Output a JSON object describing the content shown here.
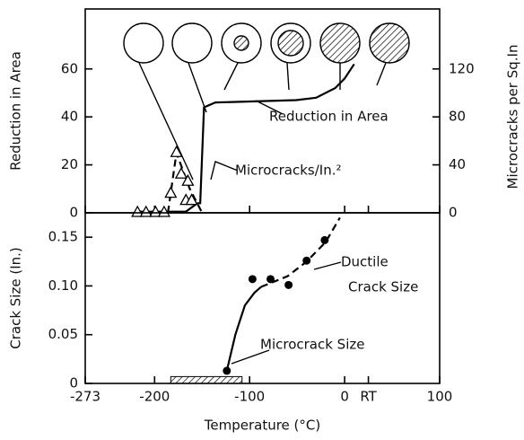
{
  "chart_data": [
    {
      "type": "line",
      "ylabel": "Reduction in Area",
      "y2label": "Microcracks per Sq.In",
      "xlim": [
        -273,
        100
      ],
      "xticks": [
        -273,
        -200,
        -100,
        0,
        {
          "value": 25,
          "label": "RT"
        },
        100
      ],
      "ylim": [
        0,
        85
      ],
      "yticks": [
        0,
        20,
        40,
        60
      ],
      "y2lim": [
        0,
        170
      ],
      "y2ticks": [
        0,
        40,
        80,
        120
      ],
      "series": [
        {
          "name": "Reduction in Area",
          "color": "#000000",
          "line": "solid",
          "x": [
            -221,
            -167,
            -155,
            -152,
            -148,
            -136,
            -51,
            -30,
            -10,
            0,
            10
          ],
          "values": [
            0.5,
            0.5,
            4,
            4,
            44,
            46,
            47,
            48,
            52,
            56,
            62
          ]
        },
        {
          "name": "Microcracks/In.²",
          "color": "#000000",
          "line": "dashed",
          "axis": "y2",
          "x": [
            -186,
            -177,
            -163,
            -150
          ],
          "values": [
            0,
            50,
            20,
            0
          ]
        },
        {
          "color": "#000000",
          "marker": "triangle",
          "axis": "y2",
          "x": [
            -218,
            -209,
            -199,
            -190,
            -177,
            -172,
            -165,
            -183,
            -167,
            -161
          ],
          "values": [
            0,
            0,
            0,
            0,
            50,
            32,
            26,
            16,
            10,
            10
          ]
        }
      ]
    },
    {
      "type": "line",
      "xlabel": "Temperature (°C)",
      "ylabel": "Crack Size (In.)",
      "xlim": [
        -273,
        100
      ],
      "xticks": [
        -273,
        -200,
        -100,
        0,
        {
          "value": 25,
          "label": "RT"
        },
        100
      ],
      "ylim": [
        0,
        0.175
      ],
      "yticks": [
        0,
        0.05,
        {
          "value": 0.1,
          "label": "0.10"
        },
        0.15
      ],
      "hatch": {
        "x": [
          -183,
          -108
        ],
        "y": [
          0,
          0.007
        ]
      },
      "annotations": [
        "Ductile",
        "Crack Size",
        "Microcrack Size"
      ],
      "series": [
        {
          "color": "#000000",
          "line": "solid",
          "x": [
            -124,
            -115,
            -105,
            -95,
            -88
          ],
          "values": [
            0.013,
            0.05,
            0.08,
            0.093,
            0.099
          ]
        },
        {
          "color": "#000000",
          "line": "dashed",
          "x": [
            -88,
            -60,
            -40,
            -20,
            -5
          ],
          "values": [
            0.099,
            0.11,
            0.125,
            0.145,
            0.17
          ]
        },
        {
          "color": "#000000",
          "marker": "dot",
          "x": [
            -124,
            -97,
            -78,
            -59,
            -40,
            -21
          ],
          "values": [
            0.013,
            0.107,
            0.107,
            0.101,
            0.126,
            0.147
          ]
        }
      ]
    }
  ]
}
